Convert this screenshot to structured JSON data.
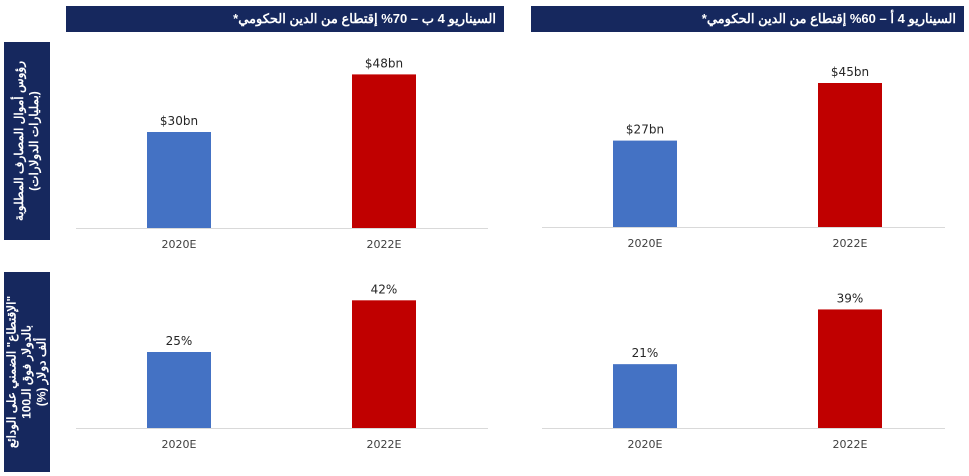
{
  "headers": {
    "left": "السيناريو 4 ب – 70% إقتطاع من الدين الحكومي*",
    "right": "السيناريو 4 أ – 60% إقتطاع من الدين الحكومي*"
  },
  "side_labels": {
    "top_line1": "رؤوس أموال المصارف المطلوبة",
    "top_line2": "(بمليارات الدولارات)",
    "bottom_line1": "\"الإقتطاع\" الضمني على الودائع",
    "bottom_line2": "بالدولار فوق الـ100",
    "bottom_line3": "ألف دولار (%)"
  },
  "colors": {
    "blue": "#4472c4",
    "red": "#c00000",
    "header_bg": "#16285e"
  },
  "chart_data": [
    {
      "type": "bar",
      "panel": "top-left",
      "categories": [
        "2020E",
        "2022E"
      ],
      "values": [
        30,
        48
      ],
      "data_labels": [
        "$30bn",
        "$48bn"
      ],
      "ylim": [
        0,
        55
      ]
    },
    {
      "type": "bar",
      "panel": "top-right",
      "categories": [
        "2020E",
        "2022E"
      ],
      "values": [
        27,
        45
      ],
      "data_labels": [
        "$27bn",
        "$45bn"
      ],
      "ylim": [
        0,
        55
      ]
    },
    {
      "type": "bar",
      "panel": "bottom-left",
      "categories": [
        "2020E",
        "2022E"
      ],
      "values": [
        25,
        42
      ],
      "data_labels": [
        "25%",
        "42%"
      ],
      "ylim": [
        0,
        50
      ]
    },
    {
      "type": "bar",
      "panel": "bottom-right",
      "categories": [
        "2020E",
        "2022E"
      ],
      "values": [
        21,
        39
      ],
      "data_labels": [
        "21%",
        "39%"
      ],
      "ylim": [
        0,
        50
      ]
    }
  ]
}
